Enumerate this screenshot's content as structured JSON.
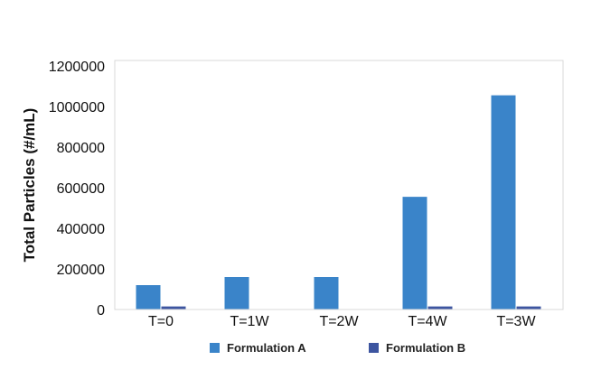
{
  "chart_data": {
    "type": "bar",
    "title": "",
    "xlabel": "",
    "ylabel": "Total Particles (#/mL)",
    "categories": [
      "T=0",
      "T=1W",
      "T=2W",
      "T=4W",
      "T=3W"
    ],
    "series": [
      {
        "name": "Formulation A",
        "color": "#3a84c9",
        "values": [
          120000,
          160000,
          160000,
          555000,
          1055000
        ]
      },
      {
        "name": "Formulation B",
        "color": "#3d55a0",
        "values": [
          15000,
          null,
          null,
          15000,
          15000
        ]
      }
    ],
    "ylim": [
      0,
      1200000
    ],
    "yticks": [
      "0",
      "200000",
      "400000",
      "600000",
      "800000",
      "1000000",
      "1200000"
    ],
    "grid": false,
    "legend_position": "bottom"
  }
}
